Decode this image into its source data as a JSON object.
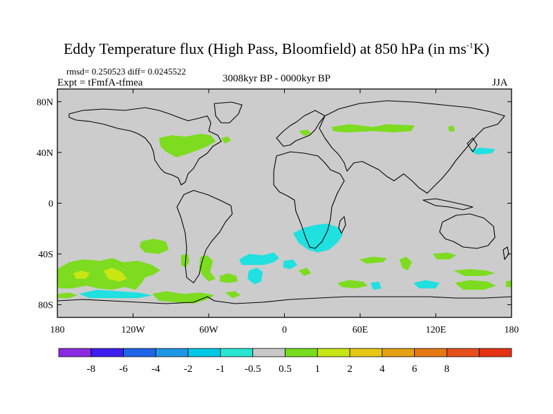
{
  "title": {
    "main": "Eddy Temperature flux (High Pass, Bloomfield) at 850 hPa (in ms",
    "superscript": "-1",
    "end": "K)"
  },
  "stats": {
    "text": "rmsd= 0.250523 diff= 0.0245522"
  },
  "experiment": {
    "text": "Expt = tFmfA-tfmea"
  },
  "period": {
    "text": "3008kyr BP - 0000kyr BP"
  },
  "season": {
    "text": "JJA"
  },
  "map": {
    "lon_range": [
      -180,
      180
    ],
    "lat_range": [
      -90,
      90
    ],
    "lon_ticks": [
      {
        "lon": -180,
        "label": "180"
      },
      {
        "lon": -120,
        "label": "120W"
      },
      {
        "lon": -60,
        "label": "60W"
      },
      {
        "lon": 0,
        "label": "0"
      },
      {
        "lon": 60,
        "label": "60E"
      },
      {
        "lon": 120,
        "label": "120E"
      },
      {
        "lon": 180,
        "label": "180"
      }
    ],
    "lat_ticks": [
      {
        "lat": 80,
        "label": "80N"
      },
      {
        "lat": 40,
        "label": "40N"
      },
      {
        "lat": 0,
        "label": "0"
      },
      {
        "lat": -40,
        "label": "40S"
      },
      {
        "lat": -80,
        "label": "80S"
      }
    ]
  },
  "colorbar": {
    "colors": [
      "#8a2be2",
      "#3c1ef0",
      "#1e64e6",
      "#1e96e6",
      "#00c8e6",
      "#28e6d2",
      "#c8c8c8",
      "#78dc1e",
      "#c8e614",
      "#e6c814",
      "#e6a014",
      "#e67814",
      "#e6501e",
      "#e63214"
    ],
    "labels": [
      "-8",
      "-6",
      "-4",
      "-2",
      "-1",
      "-0.5",
      "0.5",
      "1",
      "2",
      "4",
      "6",
      "8"
    ]
  },
  "colors": {
    "land_background": "#cccccc",
    "pos_0_5_1": "#7ddc1f",
    "pos_1_2": "#c8e614",
    "neg_0_5_1": "#20e0e0"
  }
}
